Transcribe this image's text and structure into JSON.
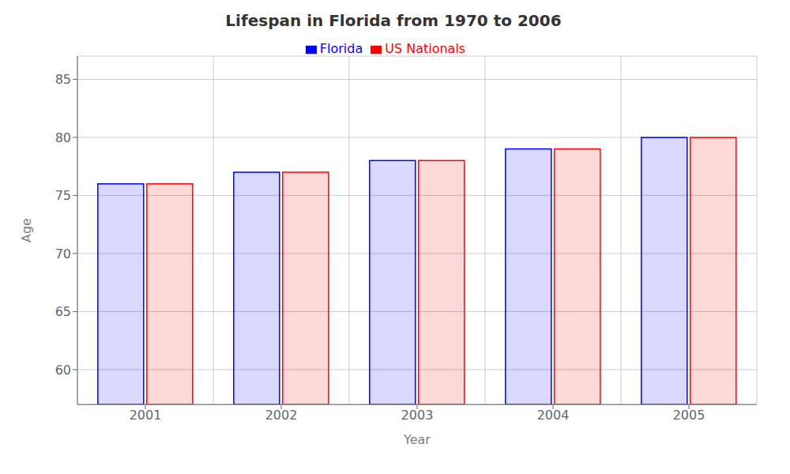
{
  "chart_data": {
    "type": "bar",
    "title": "Lifespan in Florida from 1970 to 2006",
    "xlabel": "Year",
    "ylabel": "Age",
    "categories": [
      "2001",
      "2002",
      "2003",
      "2004",
      "2005"
    ],
    "series": [
      {
        "name": "Florida",
        "color": "#0000ff",
        "values": [
          76,
          77,
          78,
          79,
          80
        ]
      },
      {
        "name": "US Nationals",
        "color": "#ff0000",
        "values": [
          76,
          77,
          78,
          79,
          80
        ]
      }
    ],
    "ylim": [
      57,
      87
    ],
    "yticks": [
      60,
      65,
      70,
      75,
      80,
      85
    ],
    "grid": true,
    "legend": "top"
  }
}
